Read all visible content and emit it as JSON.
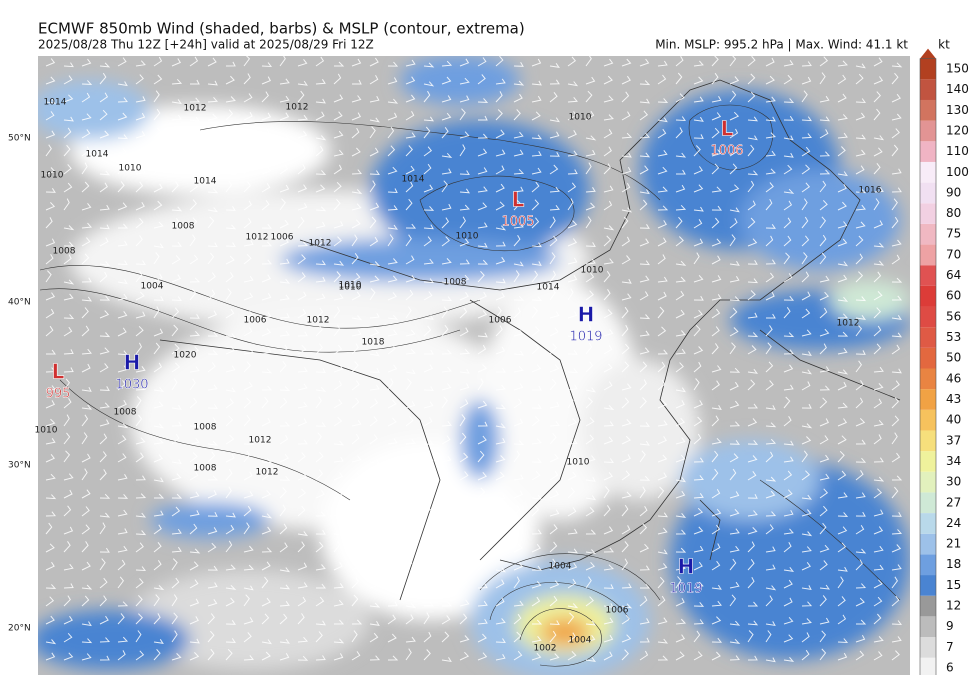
{
  "header": {
    "title": "ECMWF 850mb Wind (shaded, barbs) & MSLP (contour, extrema)",
    "subtitle": "2025/08/28 Thu 12Z [+24h] valid at 2025/08/29 Fri 12Z",
    "stats": "Min. MSLP: 995.2 hPa | Max. Wind: 41.1 kt"
  },
  "latitude_labels": [
    "50°N",
    "40°N",
    "30°N",
    "20°N"
  ],
  "extrema": [
    {
      "kind": "L",
      "value": "1006"
    },
    {
      "kind": "L",
      "value": "1005"
    },
    {
      "kind": "H",
      "value": "1019"
    },
    {
      "kind": "H",
      "value": "1030"
    },
    {
      "kind": "L",
      "value": "995"
    },
    {
      "kind": "H",
      "value": "1019"
    }
  ],
  "contour_labels": [
    "1014",
    "1012",
    "1012",
    "1010",
    "1014",
    "1014",
    "1010",
    "1012",
    "1008",
    "1008",
    "1004",
    "1006",
    "1012",
    "1010",
    "1008",
    "1010",
    "1018",
    "1020",
    "1012",
    "1008",
    "1008",
    "1010",
    "1014",
    "1012",
    "1010",
    "1010",
    "1010",
    "1014",
    "1008",
    "1006",
    "1006",
    "1004",
    "1004",
    "1002",
    "1006",
    "1010",
    "1012",
    "1012",
    "1016"
  ],
  "colorbar": {
    "unit": "kt",
    "levels": [
      {
        "value": 6,
        "color": "#f2f2f2"
      },
      {
        "value": 7,
        "color": "#dcdcdc"
      },
      {
        "value": 9,
        "color": "#bcbcbc"
      },
      {
        "value": 12,
        "color": "#999999"
      },
      {
        "value": 15,
        "color": "#4a84d2"
      },
      {
        "value": 18,
        "color": "#6e9fe0"
      },
      {
        "value": 21,
        "color": "#9dc1e9"
      },
      {
        "value": 24,
        "color": "#b9d9ea"
      },
      {
        "value": 27,
        "color": "#cfe9d6"
      },
      {
        "value": 30,
        "color": "#e2f1bd"
      },
      {
        "value": 34,
        "color": "#eff29c"
      },
      {
        "value": 37,
        "color": "#f6df7c"
      },
      {
        "value": 40,
        "color": "#f6c25d"
      },
      {
        "value": 43,
        "color": "#f1a244"
      },
      {
        "value": 46,
        "color": "#e98442"
      },
      {
        "value": 50,
        "color": "#e3683f"
      },
      {
        "value": 53,
        "color": "#df5a45"
      },
      {
        "value": 56,
        "color": "#de4b44"
      },
      {
        "value": 60,
        "color": "#dc3c38"
      },
      {
        "value": 64,
        "color": "#e05252"
      },
      {
        "value": 70,
        "color": "#eea2a4"
      },
      {
        "value": 75,
        "color": "#f0b8c2"
      },
      {
        "value": 80,
        "color": "#f2d0e2"
      },
      {
        "value": 90,
        "color": "#f1e0f2"
      },
      {
        "value": 100,
        "color": "#f8ecf8"
      },
      {
        "value": 110,
        "color": "#f0b4c4"
      },
      {
        "value": 120,
        "color": "#e29494"
      },
      {
        "value": 130,
        "color": "#d2745f"
      },
      {
        "value": 140,
        "color": "#c15440"
      },
      {
        "value": 150,
        "color": "#b24020"
      }
    ]
  }
}
